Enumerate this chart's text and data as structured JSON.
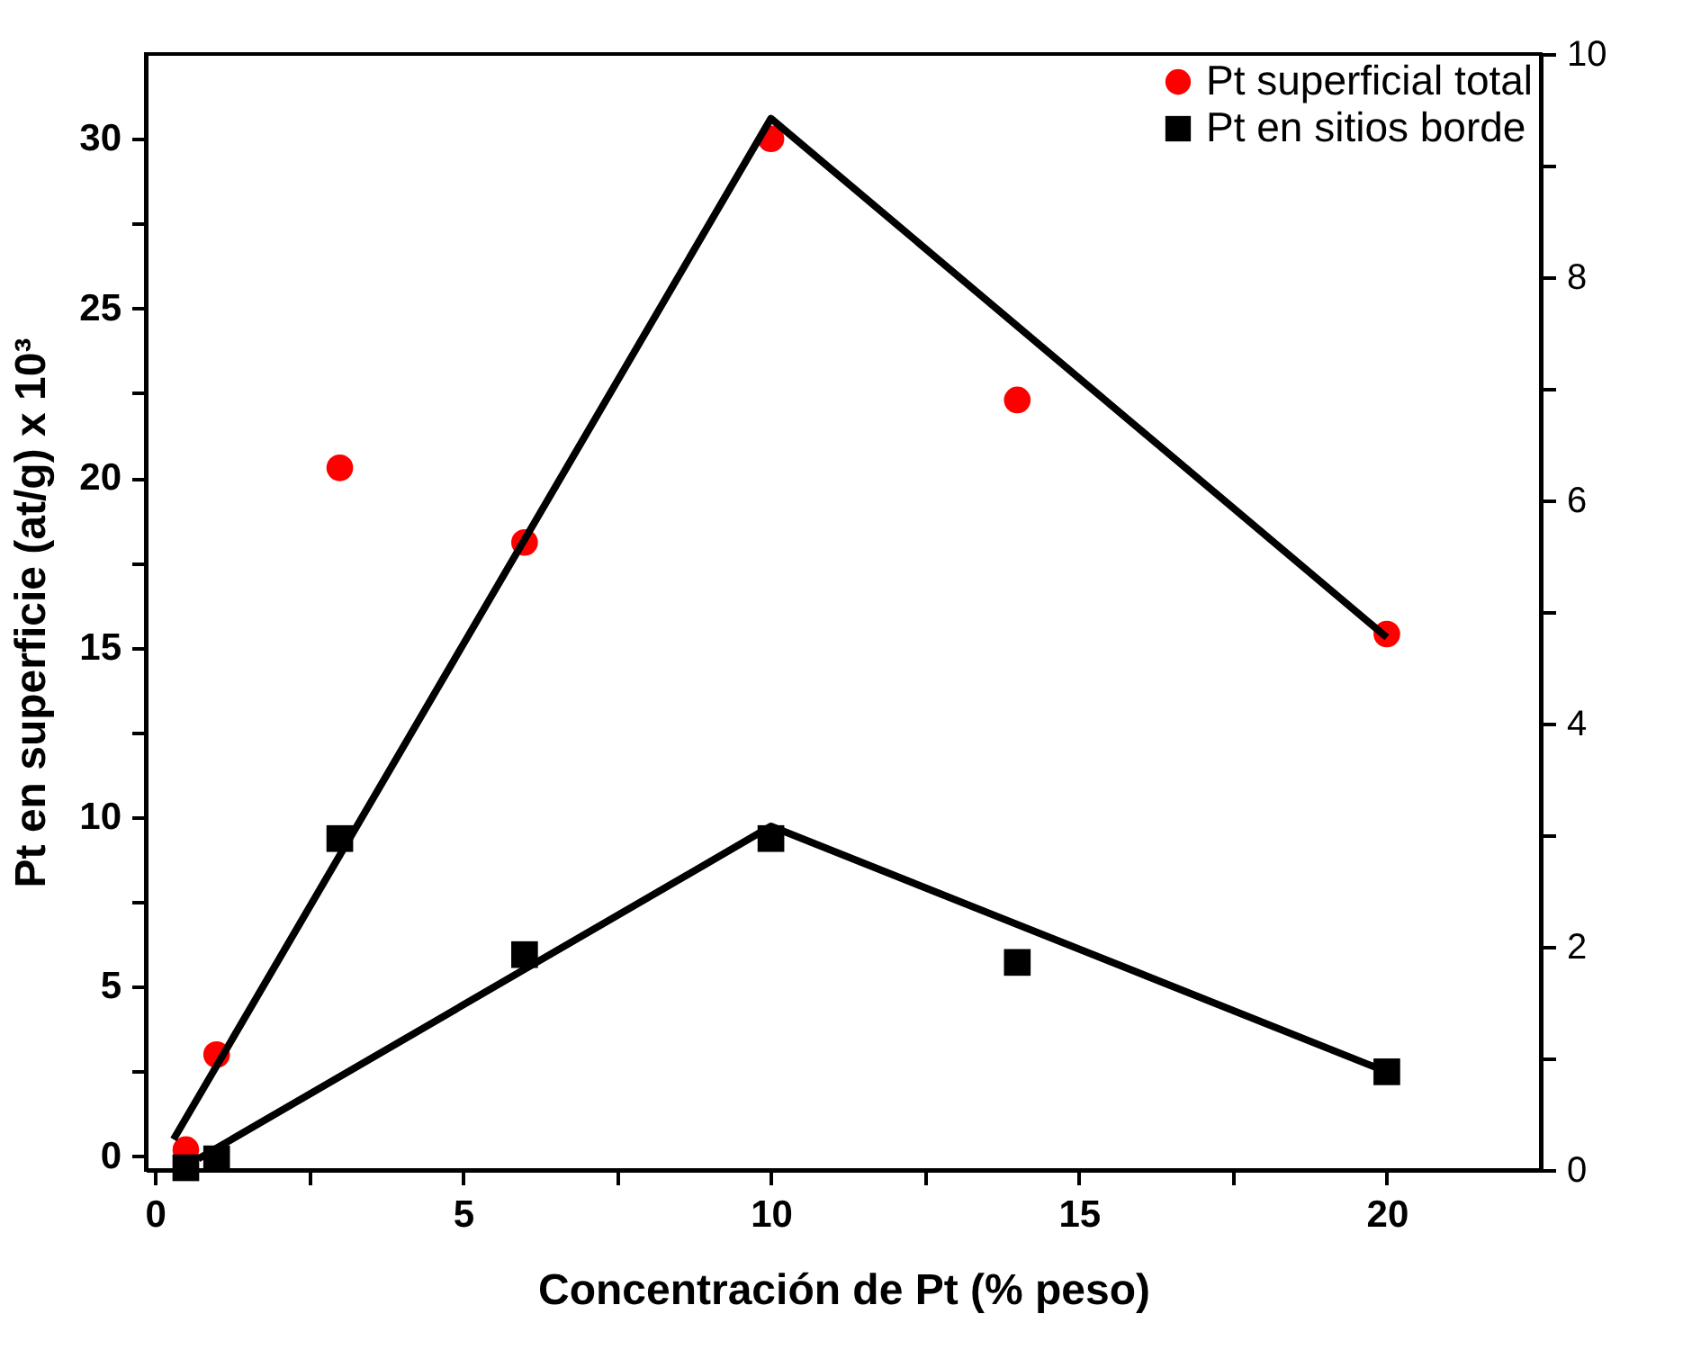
{
  "chart_data": {
    "type": "scatter",
    "xlabel": "Concentración de Pt (% peso)",
    "ylabel": "Pt en superficie (at/g) x 10³",
    "xlim": [
      -0.15,
      22.5
    ],
    "ylim": [
      -0.4,
      32.5
    ],
    "y2lim": [
      0,
      10
    ],
    "xticks": [
      0,
      {
        "value": 2.5,
        "label": null
      },
      5,
      {
        "value": 7.5,
        "label": null
      },
      10,
      {
        "value": 12.5,
        "label": null
      },
      15,
      {
        "value": 17.5,
        "label": null
      },
      20
    ],
    "yticks": [
      0,
      {
        "value": 2.5,
        "label": null
      },
      5,
      {
        "value": 7.5,
        "label": null
      },
      10,
      {
        "value": 12.5,
        "label": null
      },
      15,
      {
        "value": 17.5,
        "label": null
      },
      20,
      {
        "value": 22.5,
        "label": null
      },
      25,
      {
        "value": 27.5,
        "label": null
      },
      30
    ],
    "y2ticks": [
      0,
      {
        "value": 1,
        "label": null
      },
      2,
      {
        "value": 3,
        "label": null
      },
      4,
      {
        "value": 5,
        "label": null
      },
      6,
      {
        "value": 7,
        "label": null
      },
      8,
      {
        "value": 9,
        "label": null
      },
      10
    ],
    "legend": "top right",
    "grid": false,
    "series": [
      {
        "name": "Pt superficial total",
        "marker": "circle",
        "color": "#ff0000",
        "x": [
          0.5,
          1,
          3,
          6,
          10,
          14,
          20
        ],
        "values": [
          0.2,
          3.0,
          20.3,
          18.1,
          30.0,
          22.3,
          15.4
        ]
      },
      {
        "name": "Pt en sitios borde",
        "marker": "square",
        "color": "#000000",
        "axis": "y2",
        "x": [
          0.5,
          1,
          3,
          6,
          10,
          14,
          20
        ],
        "values": [
          0.02,
          0.1,
          2.97,
          1.93,
          2.97,
          1.86,
          0.88
        ]
      },
      {
        "type": "line",
        "line_style": "solid",
        "marker": "none",
        "color": "#000000",
        "x": [
          0.3,
          10,
          20
        ],
        "values": [
          0.5,
          30.6,
          15.3
        ]
      },
      {
        "type": "line",
        "line_style": "solid",
        "marker": "none",
        "color": "#000000",
        "axis": "y2",
        "x": [
          0.7,
          10,
          20
        ],
        "values": [
          0.1,
          3.08,
          0.88
        ]
      }
    ]
  }
}
